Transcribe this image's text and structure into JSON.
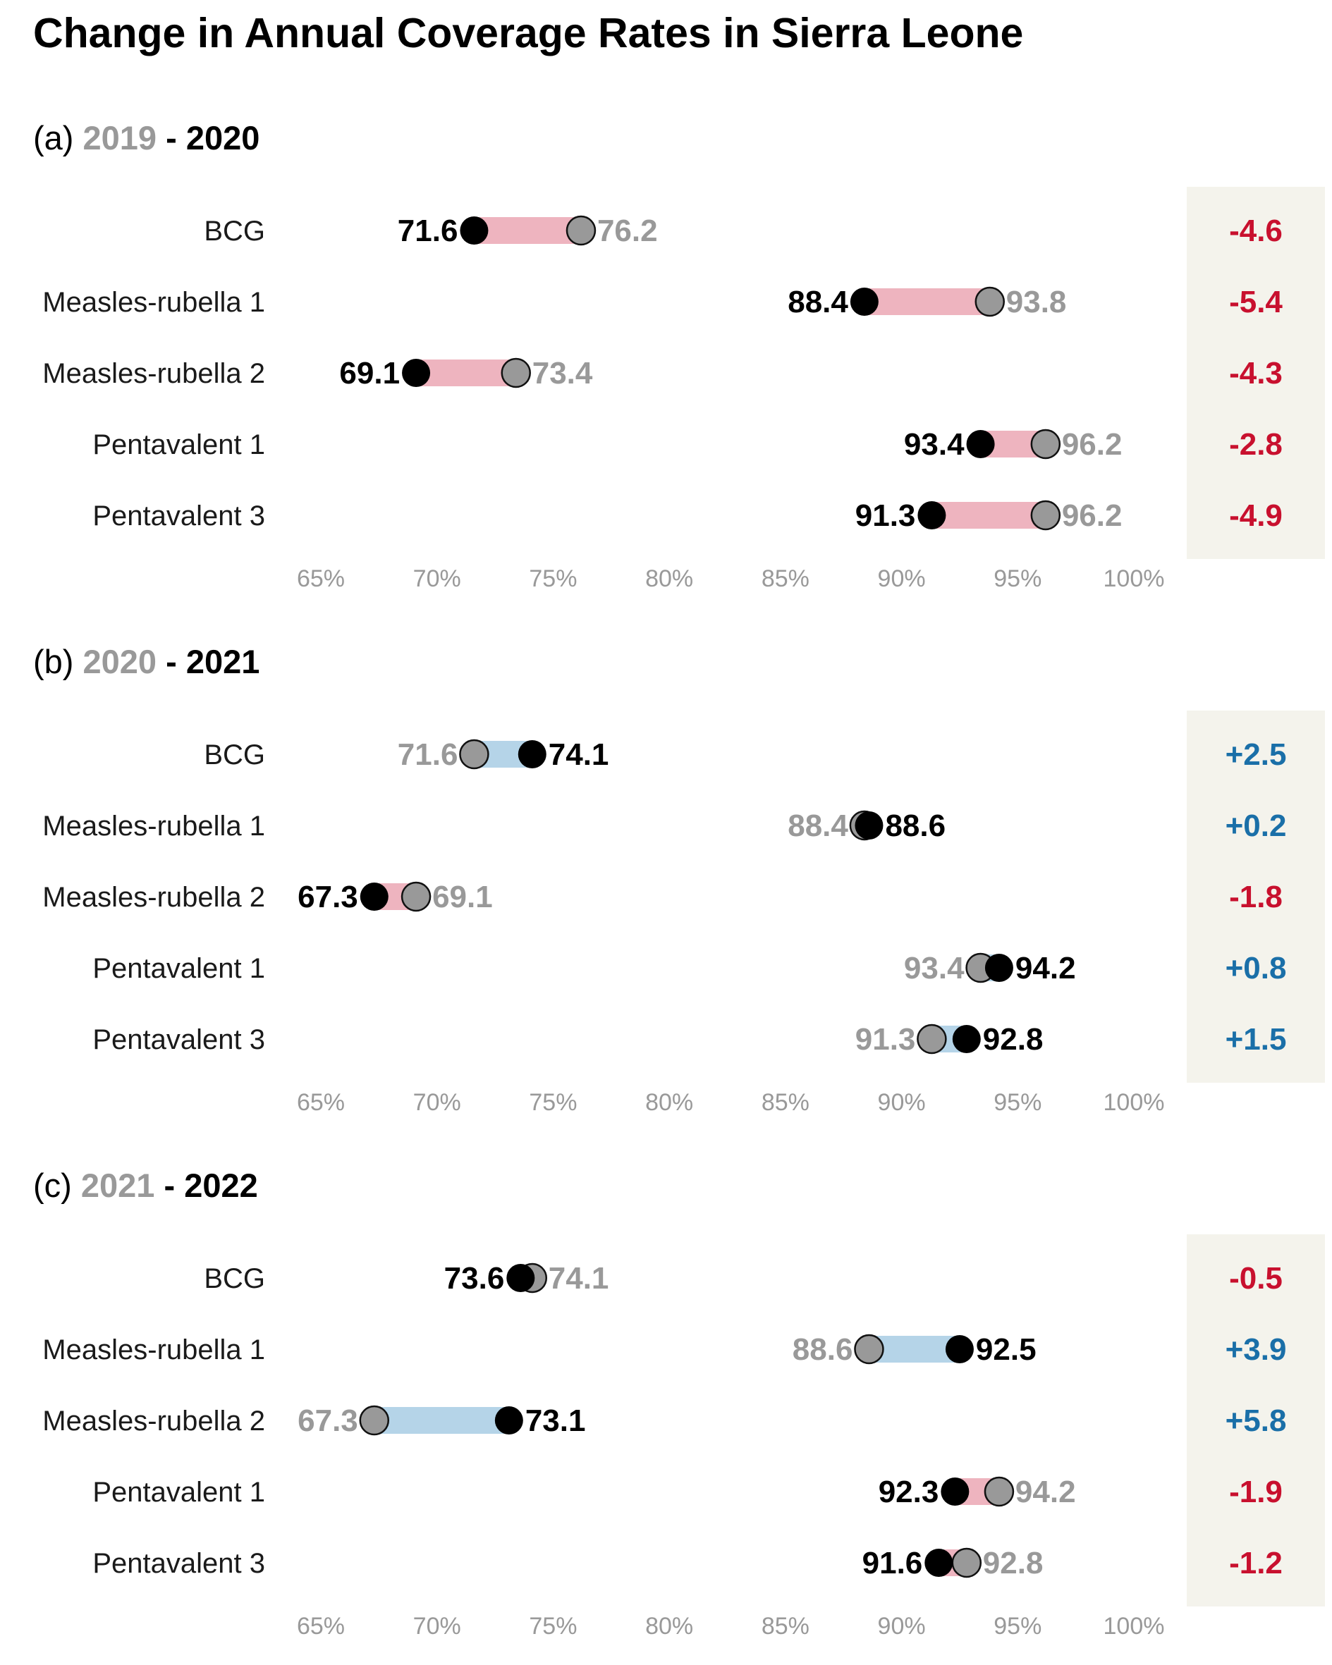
{
  "chart_data": {
    "type": "dumbbell",
    "title": "Change in Annual Coverage Rates in Sierra Leone",
    "xlim": [
      65,
      100
    ],
    "ticks": [
      65,
      70,
      75,
      80,
      85,
      90,
      95,
      100
    ],
    "tick_suffix": "%",
    "colors": {
      "decrease_bar": "#eeb4bf",
      "increase_bar": "#b5d4e8",
      "decrease_text": "#c8102e",
      "increase_text": "#1a6fa8",
      "prev_point": "#999999",
      "curr_point": "#000000",
      "prev_text": "#999999",
      "curr_text": "#000000",
      "diff_panel_bg": "#f4f3ec"
    },
    "categories": [
      "BCG",
      "Measles-rubella 1",
      "Measles-rubella 2",
      "Pentavalent 1",
      "Pentavalent 3"
    ],
    "panels": [
      {
        "label": "(a)",
        "from_year": "2019",
        "sep": "-",
        "to_year": "2020",
        "rows": [
          {
            "name": "BCG",
            "from": 76.2,
            "to": 71.6,
            "from_label": "76.2",
            "to_label": "71.6",
            "diff": "-4.6"
          },
          {
            "name": "Measles-rubella 1",
            "from": 93.8,
            "to": 88.4,
            "from_label": "93.8",
            "to_label": "88.4",
            "diff": "-5.4"
          },
          {
            "name": "Measles-rubella 2",
            "from": 73.4,
            "to": 69.1,
            "from_label": "73.4",
            "to_label": "69.1",
            "diff": "-4.3"
          },
          {
            "name": "Pentavalent 1",
            "from": 96.2,
            "to": 93.4,
            "from_label": "96.2",
            "to_label": "93.4",
            "diff": "-2.8"
          },
          {
            "name": "Pentavalent 3",
            "from": 96.2,
            "to": 91.3,
            "from_label": "96.2",
            "to_label": "91.3",
            "diff": "-4.9"
          }
        ]
      },
      {
        "label": "(b)",
        "from_year": "2020",
        "sep": "-",
        "to_year": "2021",
        "rows": [
          {
            "name": "BCG",
            "from": 71.6,
            "to": 74.1,
            "from_label": "71.6",
            "to_label": "74.1",
            "diff": "+2.5"
          },
          {
            "name": "Measles-rubella 1",
            "from": 88.4,
            "to": 88.6,
            "from_label": "88.4",
            "to_label": "88.6",
            "diff": "+0.2"
          },
          {
            "name": "Measles-rubella 2",
            "from": 69.1,
            "to": 67.3,
            "from_label": "69.1",
            "to_label": "67.3",
            "diff": "-1.8"
          },
          {
            "name": "Pentavalent 1",
            "from": 93.4,
            "to": 94.2,
            "from_label": "93.4",
            "to_label": "94.2",
            "diff": "+0.8"
          },
          {
            "name": "Pentavalent 3",
            "from": 91.3,
            "to": 92.8,
            "from_label": "91.3",
            "to_label": "92.8",
            "diff": "+1.5"
          }
        ]
      },
      {
        "label": "(c)",
        "from_year": "2021",
        "sep": "-",
        "to_year": "2022",
        "rows": [
          {
            "name": "BCG",
            "from": 74.1,
            "to": 73.6,
            "from_label": "74.1",
            "to_label": "73.6",
            "diff": "-0.5"
          },
          {
            "name": "Measles-rubella 1",
            "from": 88.6,
            "to": 92.5,
            "from_label": "88.6",
            "to_label": "92.5",
            "diff": "+3.9"
          },
          {
            "name": "Measles-rubella 2",
            "from": 67.3,
            "to": 73.1,
            "from_label": "67.3",
            "to_label": "73.1",
            "diff": "+5.8"
          },
          {
            "name": "Pentavalent 1",
            "from": 94.2,
            "to": 92.3,
            "from_label": "94.2",
            "to_label": "92.3",
            "diff": "-1.9"
          },
          {
            "name": "Pentavalent 3",
            "from": 92.8,
            "to": 91.6,
            "from_label": "92.8",
            "to_label": "91.6",
            "diff": "-1.2"
          }
        ]
      }
    ]
  }
}
